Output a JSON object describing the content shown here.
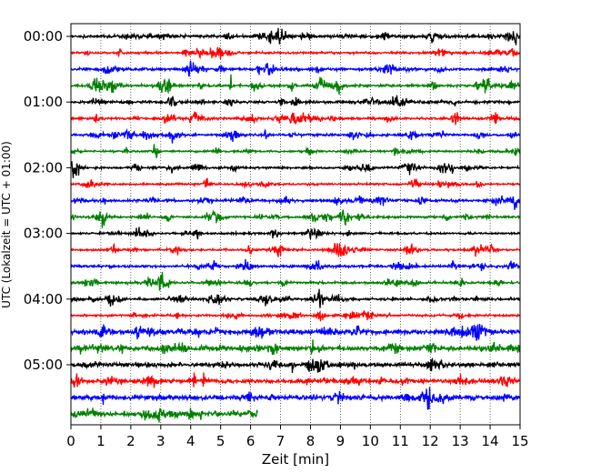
{
  "chart_data": {
    "type": "line",
    "title": "",
    "xlabel": "Zeit  [min]",
    "ylabel": "UTC (Lokalzeit = UTC + 01:00)",
    "xlim": [
      0,
      15
    ],
    "x_ticks": [
      "0",
      "1",
      "2",
      "3",
      "4",
      "5",
      "6",
      "7",
      "8",
      "9",
      "10",
      "11",
      "12",
      "13",
      "14",
      "15"
    ],
    "x_tick_values": [
      0,
      1,
      2,
      3,
      4,
      5,
      6,
      7,
      8,
      9,
      10,
      11,
      12,
      13,
      14,
      15
    ],
    "y_tick_labels": [
      "00:00",
      "01:00",
      "02:00",
      "03:00",
      "04:00",
      "05:00"
    ],
    "y_tick_rows": [
      0,
      4,
      8,
      12,
      16,
      20
    ],
    "grid": "vertical dotted at each minute",
    "row_interval_minutes": 15,
    "row_colors": [
      "#000000",
      "#ff0000",
      "#0000ff",
      "#008000"
    ],
    "series": [
      {
        "row_start": "00:00",
        "color": "#000000",
        "x_end": 15
      },
      {
        "row_start": "00:15",
        "color": "#ff0000",
        "x_end": 15
      },
      {
        "row_start": "00:30",
        "color": "#0000ff",
        "x_end": 15
      },
      {
        "row_start": "00:45",
        "color": "#008000",
        "x_end": 15
      },
      {
        "row_start": "01:00",
        "color": "#000000",
        "x_end": 15
      },
      {
        "row_start": "01:15",
        "color": "#ff0000",
        "x_end": 15
      },
      {
        "row_start": "01:30",
        "color": "#0000ff",
        "x_end": 15
      },
      {
        "row_start": "01:45",
        "color": "#008000",
        "x_end": 15
      },
      {
        "row_start": "02:00",
        "color": "#000000",
        "x_end": 15
      },
      {
        "row_start": "02:15",
        "color": "#ff0000",
        "x_end": 15
      },
      {
        "row_start": "02:30",
        "color": "#0000ff",
        "x_end": 15
      },
      {
        "row_start": "02:45",
        "color": "#008000",
        "x_end": 15
      },
      {
        "row_start": "03:00",
        "color": "#000000",
        "x_end": 15
      },
      {
        "row_start": "03:15",
        "color": "#ff0000",
        "x_end": 15
      },
      {
        "row_start": "03:30",
        "color": "#0000ff",
        "x_end": 15
      },
      {
        "row_start": "03:45",
        "color": "#008000",
        "x_end": 15
      },
      {
        "row_start": "04:00",
        "color": "#000000",
        "x_end": 15
      },
      {
        "row_start": "04:15",
        "color": "#ff0000",
        "x_end": 15
      },
      {
        "row_start": "04:30",
        "color": "#0000ff",
        "x_end": 15
      },
      {
        "row_start": "04:45",
        "color": "#008000",
        "x_end": 15
      },
      {
        "row_start": "05:00",
        "color": "#000000",
        "x_end": 15
      },
      {
        "row_start": "05:15",
        "color": "#ff0000",
        "x_end": 15
      },
      {
        "row_start": "05:30",
        "color": "#0000ff",
        "x_end": 15
      },
      {
        "row_start": "05:45",
        "color": "#008000",
        "x_end": 6.25
      }
    ]
  }
}
